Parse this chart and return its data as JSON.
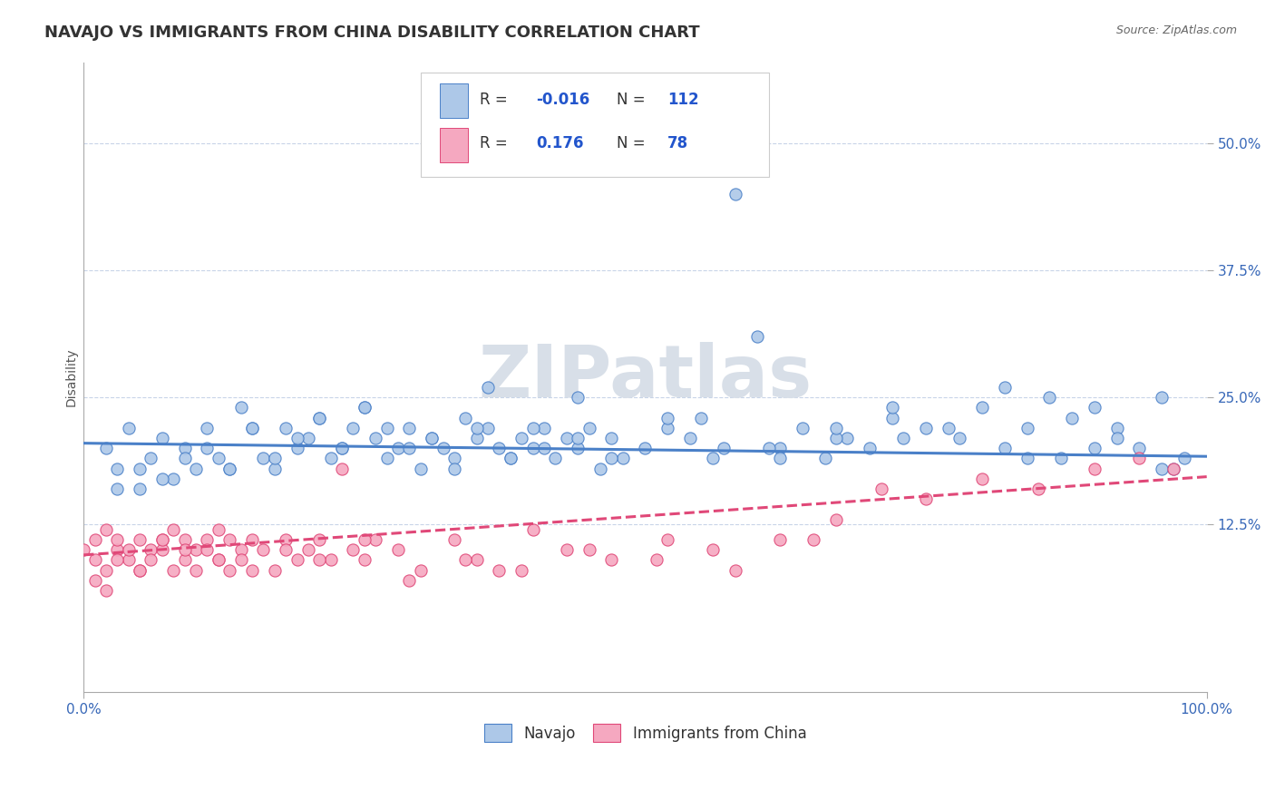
{
  "title": "NAVAJO VS IMMIGRANTS FROM CHINA DISABILITY CORRELATION CHART",
  "source": "Source: ZipAtlas.com",
  "ylabel": "Disability",
  "xlim": [
    0.0,
    1.0
  ],
  "ylim": [
    -0.04,
    0.58
  ],
  "yticks": [
    0.125,
    0.25,
    0.375,
    0.5
  ],
  "ytick_labels": [
    "12.5%",
    "25.0%",
    "37.5%",
    "50.0%"
  ],
  "xtick_labels": [
    "0.0%",
    "100.0%"
  ],
  "navajo_color": "#adc8e8",
  "china_color": "#f5a8c0",
  "navajo_line_color": "#4a80c8",
  "china_line_color": "#e04878",
  "grid_color": "#c8d4e8",
  "watermark_color": "#d8dfe8",
  "background_color": "#ffffff",
  "navajo_x": [
    0.02,
    0.04,
    0.06,
    0.08,
    0.1,
    0.12,
    0.14,
    0.16,
    0.18,
    0.2,
    0.03,
    0.05,
    0.07,
    0.09,
    0.11,
    0.13,
    0.15,
    0.17,
    0.19,
    0.21,
    0.22,
    0.23,
    0.24,
    0.25,
    0.26,
    0.27,
    0.28,
    0.29,
    0.3,
    0.31,
    0.32,
    0.33,
    0.34,
    0.35,
    0.36,
    0.37,
    0.38,
    0.39,
    0.4,
    0.41,
    0.42,
    0.43,
    0.44,
    0.45,
    0.46,
    0.47,
    0.48,
    0.5,
    0.52,
    0.54,
    0.56,
    0.58,
    0.6,
    0.62,
    0.64,
    0.66,
    0.68,
    0.7,
    0.72,
    0.75,
    0.78,
    0.8,
    0.82,
    0.84,
    0.86,
    0.88,
    0.9,
    0.92,
    0.94,
    0.96,
    0.98,
    0.03,
    0.05,
    0.07,
    0.09,
    0.11,
    0.13,
    0.15,
    0.17,
    0.19,
    0.21,
    0.23,
    0.25,
    0.27,
    0.29,
    0.31,
    0.33,
    0.35,
    0.38,
    0.41,
    0.44,
    0.47,
    0.52,
    0.57,
    0.62,
    0.67,
    0.72,
    0.77,
    0.82,
    0.87,
    0.92,
    0.97,
    0.36,
    0.4,
    0.44,
    0.55,
    0.61,
    0.67,
    0.73,
    0.84,
    0.9,
    0.96
  ],
  "navajo_y": [
    0.2,
    0.22,
    0.19,
    0.17,
    0.18,
    0.19,
    0.24,
    0.19,
    0.22,
    0.21,
    0.18,
    0.16,
    0.21,
    0.2,
    0.22,
    0.18,
    0.22,
    0.18,
    0.2,
    0.23,
    0.19,
    0.2,
    0.22,
    0.24,
    0.21,
    0.19,
    0.2,
    0.22,
    0.18,
    0.21,
    0.2,
    0.19,
    0.23,
    0.21,
    0.22,
    0.2,
    0.19,
    0.21,
    0.2,
    0.22,
    0.19,
    0.21,
    0.2,
    0.22,
    0.18,
    0.21,
    0.19,
    0.2,
    0.22,
    0.21,
    0.19,
    0.45,
    0.31,
    0.2,
    0.22,
    0.19,
    0.21,
    0.2,
    0.23,
    0.22,
    0.21,
    0.24,
    0.26,
    0.22,
    0.25,
    0.23,
    0.24,
    0.22,
    0.2,
    0.25,
    0.19,
    0.16,
    0.18,
    0.17,
    0.19,
    0.2,
    0.18,
    0.22,
    0.19,
    0.21,
    0.23,
    0.2,
    0.24,
    0.22,
    0.2,
    0.21,
    0.18,
    0.22,
    0.19,
    0.2,
    0.21,
    0.19,
    0.23,
    0.2,
    0.19,
    0.21,
    0.24,
    0.22,
    0.2,
    0.19,
    0.21,
    0.18,
    0.26,
    0.22,
    0.25,
    0.23,
    0.2,
    0.22,
    0.21,
    0.19,
    0.2,
    0.18
  ],
  "china_x": [
    0.0,
    0.01,
    0.01,
    0.02,
    0.02,
    0.03,
    0.03,
    0.04,
    0.04,
    0.05,
    0.05,
    0.06,
    0.06,
    0.07,
    0.07,
    0.08,
    0.08,
    0.09,
    0.09,
    0.1,
    0.1,
    0.11,
    0.11,
    0.12,
    0.12,
    0.13,
    0.13,
    0.14,
    0.14,
    0.15,
    0.16,
    0.17,
    0.18,
    0.19,
    0.2,
    0.21,
    0.22,
    0.23,
    0.24,
    0.25,
    0.26,
    0.28,
    0.3,
    0.33,
    0.35,
    0.37,
    0.4,
    0.43,
    0.47,
    0.52,
    0.56,
    0.62,
    0.67,
    0.71,
    0.75,
    0.8,
    0.85,
    0.9,
    0.94,
    0.97,
    0.01,
    0.03,
    0.05,
    0.07,
    0.09,
    0.12,
    0.15,
    0.18,
    0.21,
    0.25,
    0.29,
    0.34,
    0.39,
    0.45,
    0.51,
    0.58,
    0.65,
    0.02
  ],
  "china_y": [
    0.1,
    0.09,
    0.11,
    0.08,
    0.12,
    0.1,
    0.11,
    0.09,
    0.1,
    0.08,
    0.11,
    0.1,
    0.09,
    0.11,
    0.1,
    0.08,
    0.12,
    0.09,
    0.11,
    0.1,
    0.08,
    0.11,
    0.1,
    0.09,
    0.12,
    0.08,
    0.11,
    0.1,
    0.09,
    0.11,
    0.1,
    0.08,
    0.11,
    0.09,
    0.1,
    0.11,
    0.09,
    0.18,
    0.1,
    0.09,
    0.11,
    0.1,
    0.08,
    0.11,
    0.09,
    0.08,
    0.12,
    0.1,
    0.09,
    0.11,
    0.1,
    0.11,
    0.13,
    0.16,
    0.15,
    0.17,
    0.16,
    0.18,
    0.19,
    0.18,
    0.07,
    0.09,
    0.08,
    0.11,
    0.1,
    0.09,
    0.08,
    0.1,
    0.09,
    0.11,
    0.07,
    0.09,
    0.08,
    0.1,
    0.09,
    0.08,
    0.11,
    0.06
  ],
  "navajo_trend_x": [
    0.0,
    1.0
  ],
  "navajo_trend_y": [
    0.205,
    0.192
  ],
  "china_trend_x": [
    0.0,
    1.0
  ],
  "china_trend_y": [
    0.095,
    0.172
  ],
  "title_fontsize": 13,
  "axis_fontsize": 10,
  "legend_fontsize": 11
}
